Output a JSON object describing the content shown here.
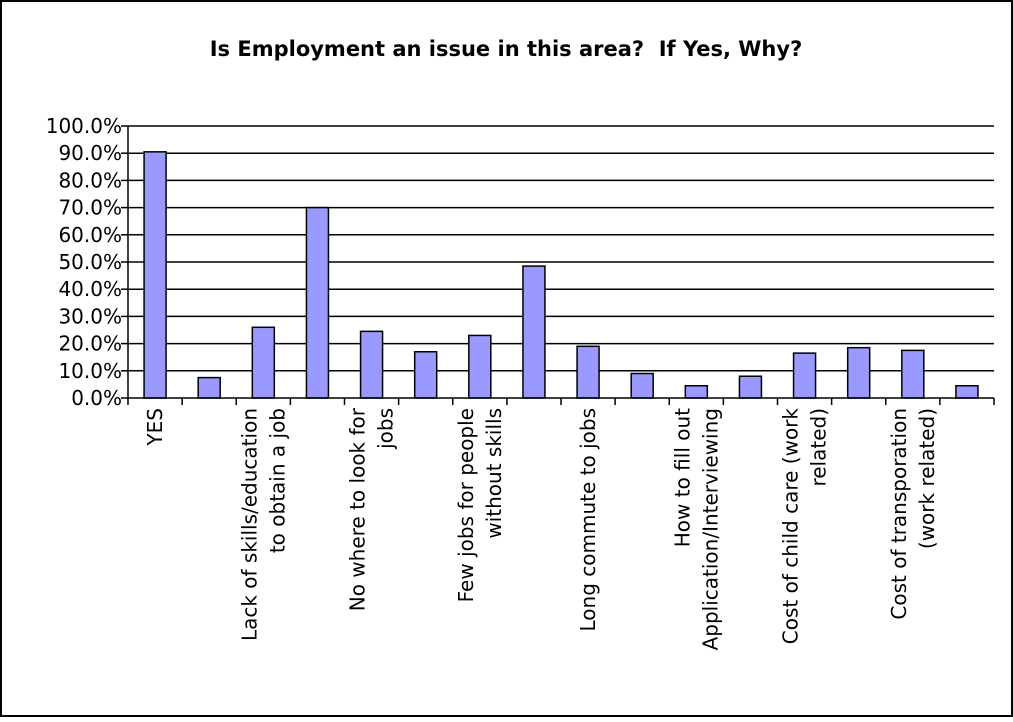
{
  "chart_data": {
    "type": "bar",
    "title": "Is Employment an issue in this area?  If Yes, Why?",
    "xlabel": "",
    "ylabel": "",
    "ylim": [
      0,
      100
    ],
    "y_tick_values": [
      0,
      10,
      20,
      30,
      40,
      50,
      60,
      70,
      80,
      90,
      100
    ],
    "y_tick_labels": [
      "0.0%",
      "10.0%",
      "20.0%",
      "30.0%",
      "40.0%",
      "50.0%",
      "60.0%",
      "70.0%",
      "80.0%",
      "90.0%",
      "100.0%"
    ],
    "categories": [
      "YES",
      "",
      "Lack of skills/education to obtain a job",
      "",
      "No where to look for jobs",
      "",
      "Few jobs for people without skills",
      "",
      "Long commute to jobs",
      "",
      "How to fill out Application/Interviewing",
      "",
      "Cost of child care (work related)",
      "",
      "Cost of transporation (work related)",
      ""
    ],
    "category_label_lines": [
      [
        "YES"
      ],
      [],
      [
        "Lack of skills/education",
        "to obtain a job"
      ],
      [],
      [
        "No where to look for",
        "jobs"
      ],
      [],
      [
        "Few jobs for people",
        "without skills"
      ],
      [],
      [
        "Long commute to jobs"
      ],
      [],
      [
        "How to fill out",
        "Application/Interviewing"
      ],
      [],
      [
        "Cost of child care (work",
        "related)"
      ],
      [],
      [
        "Cost of transporation",
        "(work related)"
      ],
      []
    ],
    "values": [
      90.5,
      7.5,
      26.0,
      70.0,
      24.5,
      17.0,
      23.0,
      48.5,
      19.0,
      9.0,
      4.5,
      8.0,
      16.5,
      18.5,
      17.5,
      4.5
    ],
    "bar_color": "#9999ff",
    "bar_border_color": "#000000",
    "grid": true,
    "legend": "none"
  }
}
